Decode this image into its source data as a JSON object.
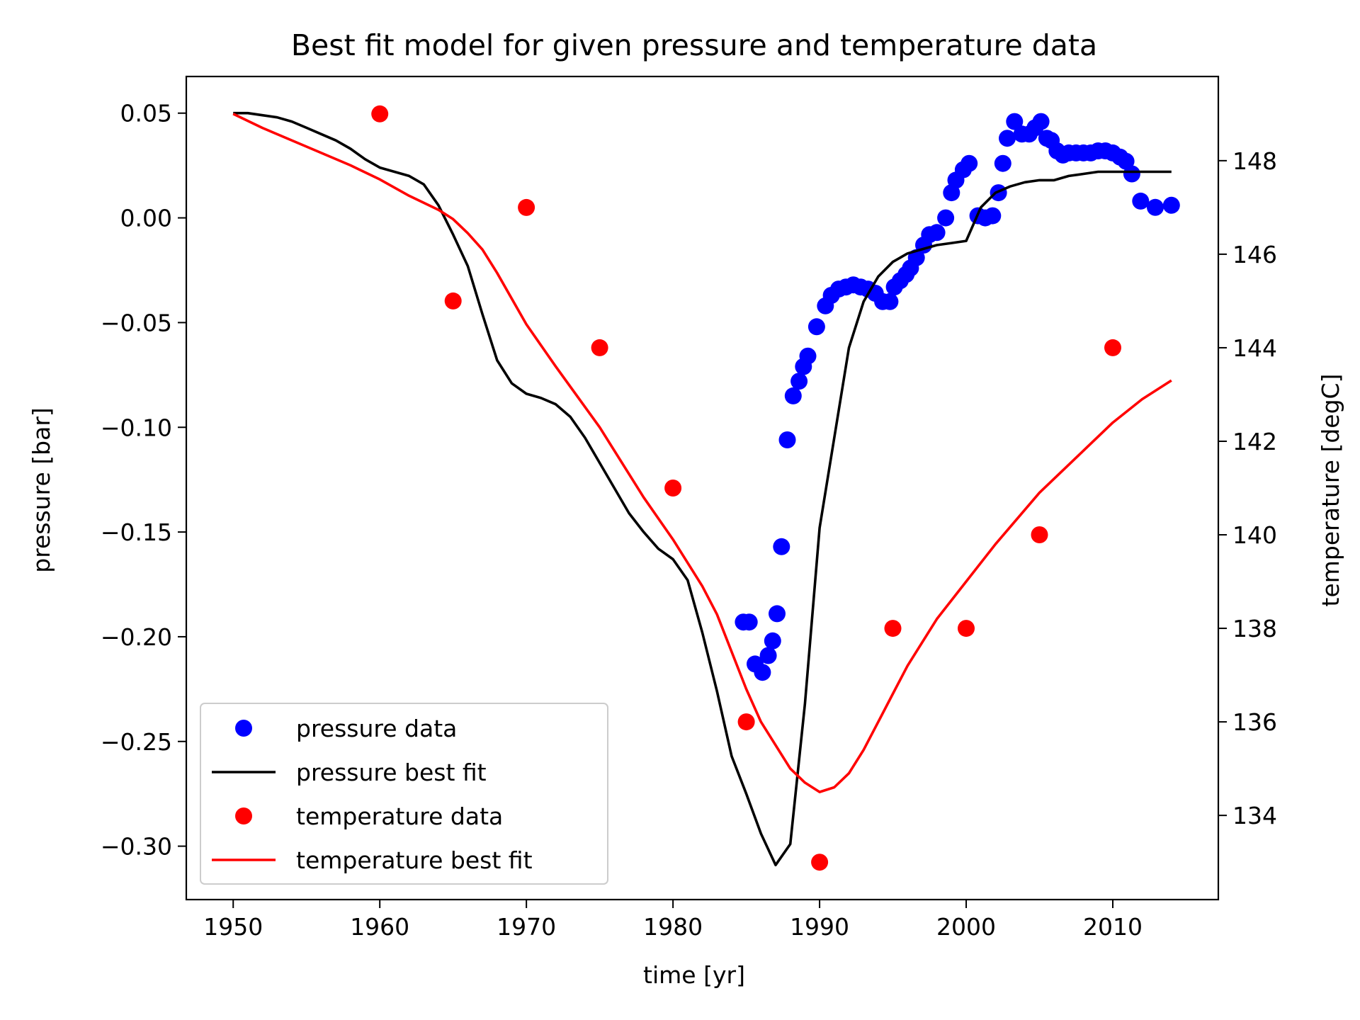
{
  "chart_data": {
    "type": "line",
    "title": "Best fit model for given pressure and temperature data",
    "xlabel": "time [yr]",
    "ylabel_left": "pressure [bar]",
    "ylabel_right": "temperature [degC]",
    "xlim": [
      1946.8,
      2017.2
    ],
    "ylim_left": [
      -0.3255,
      0.0675
    ],
    "ylim_right": [
      132.2,
      149.8
    ],
    "x_ticks": [
      1950,
      1960,
      1970,
      1980,
      1990,
      2000,
      2010
    ],
    "x_tick_labels": [
      "1950",
      "1960",
      "1970",
      "1980",
      "1990",
      "2000",
      "2010"
    ],
    "y_left_ticks": [
      0.05,
      0.0,
      -0.05,
      -0.1,
      -0.15,
      -0.2,
      -0.25,
      -0.3
    ],
    "y_left_tick_labels": [
      "0.05",
      "0.00",
      "−0.05",
      "−0.10",
      "−0.15",
      "−0.20",
      "−0.25",
      "−0.30"
    ],
    "y_right_ticks": [
      134,
      136,
      138,
      140,
      142,
      144,
      146,
      148
    ],
    "y_right_tick_labels": [
      "134",
      "136",
      "138",
      "140",
      "142",
      "144",
      "146",
      "148"
    ],
    "grid": false,
    "legend_position": "lower-left",
    "series": [
      {
        "name": "pressure data",
        "kind": "scatter",
        "axis": "left",
        "color": "#0000ff",
        "points": [
          [
            1984.8,
            -0.193
          ],
          [
            1985.2,
            -0.193
          ],
          [
            1985.6,
            -0.213
          ],
          [
            1986.1,
            -0.217
          ],
          [
            1986.5,
            -0.209
          ],
          [
            1986.8,
            -0.202
          ],
          [
            1987.1,
            -0.189
          ],
          [
            1987.4,
            -0.157
          ],
          [
            1987.8,
            -0.106
          ],
          [
            1988.2,
            -0.085
          ],
          [
            1988.6,
            -0.078
          ],
          [
            1988.9,
            -0.071
          ],
          [
            1989.2,
            -0.066
          ],
          [
            1989.8,
            -0.052
          ],
          [
            1990.4,
            -0.042
          ],
          [
            1990.8,
            -0.037
          ],
          [
            1991.3,
            -0.034
          ],
          [
            1991.8,
            -0.033
          ],
          [
            1992.3,
            -0.032
          ],
          [
            1992.8,
            -0.033
          ],
          [
            1993.3,
            -0.034
          ],
          [
            1993.8,
            -0.036
          ],
          [
            1994.3,
            -0.04
          ],
          [
            1994.8,
            -0.04
          ],
          [
            1995.1,
            -0.033
          ],
          [
            1995.5,
            -0.03
          ],
          [
            1995.9,
            -0.027
          ],
          [
            1996.2,
            -0.024
          ],
          [
            1996.6,
            -0.019
          ],
          [
            1997.1,
            -0.013
          ],
          [
            1997.5,
            -0.008
          ],
          [
            1998.0,
            -0.007
          ],
          [
            1998.6,
            0.0
          ],
          [
            1999.0,
            0.012
          ],
          [
            1999.3,
            0.018
          ],
          [
            1999.8,
            0.023
          ],
          [
            2000.2,
            0.026
          ],
          [
            2000.8,
            0.001
          ],
          [
            2001.3,
            0.0
          ],
          [
            2001.8,
            0.001
          ],
          [
            2002.2,
            0.012
          ],
          [
            2002.5,
            0.026
          ],
          [
            2002.8,
            0.038
          ],
          [
            2003.3,
            0.046
          ],
          [
            2003.8,
            0.04
          ],
          [
            2004.3,
            0.04
          ],
          [
            2004.7,
            0.043
          ],
          [
            2005.1,
            0.046
          ],
          [
            2005.5,
            0.038
          ],
          [
            2005.8,
            0.037
          ],
          [
            2006.2,
            0.032
          ],
          [
            2006.6,
            0.03
          ],
          [
            2007.0,
            0.031
          ],
          [
            2007.5,
            0.031
          ],
          [
            2008.0,
            0.031
          ],
          [
            2008.5,
            0.031
          ],
          [
            2009.0,
            0.032
          ],
          [
            2009.5,
            0.032
          ],
          [
            2010.0,
            0.031
          ],
          [
            2010.5,
            0.029
          ],
          [
            2010.9,
            0.027
          ],
          [
            2011.3,
            0.021
          ],
          [
            2011.9,
            0.008
          ],
          [
            2012.9,
            0.005
          ],
          [
            2014.0,
            0.006
          ]
        ]
      },
      {
        "name": "pressure best fit",
        "kind": "line",
        "axis": "left",
        "color": "#000000",
        "points": [
          [
            1950,
            0.05
          ],
          [
            1951,
            0.05
          ],
          [
            1952,
            0.049
          ],
          [
            1953,
            0.048
          ],
          [
            1954,
            0.046
          ],
          [
            1955,
            0.043
          ],
          [
            1956,
            0.04
          ],
          [
            1957,
            0.037
          ],
          [
            1958,
            0.033
          ],
          [
            1959,
            0.028
          ],
          [
            1960,
            0.024
          ],
          [
            1961,
            0.022
          ],
          [
            1962,
            0.02
          ],
          [
            1963,
            0.016
          ],
          [
            1964,
            0.006
          ],
          [
            1965,
            -0.008
          ],
          [
            1966,
            -0.023
          ],
          [
            1967,
            -0.046
          ],
          [
            1968,
            -0.068
          ],
          [
            1969,
            -0.079
          ],
          [
            1970,
            -0.084
          ],
          [
            1971,
            -0.086
          ],
          [
            1972,
            -0.089
          ],
          [
            1973,
            -0.095
          ],
          [
            1974,
            -0.105
          ],
          [
            1975,
            -0.117
          ],
          [
            1976,
            -0.129
          ],
          [
            1977,
            -0.141
          ],
          [
            1978,
            -0.15
          ],
          [
            1979,
            -0.158
          ],
          [
            1980,
            -0.163
          ],
          [
            1981,
            -0.173
          ],
          [
            1982,
            -0.198
          ],
          [
            1983,
            -0.226
          ],
          [
            1984,
            -0.257
          ],
          [
            1985,
            -0.275
          ],
          [
            1986,
            -0.294
          ],
          [
            1987,
            -0.309
          ],
          [
            1988,
            -0.299
          ],
          [
            1989,
            -0.232
          ],
          [
            1990,
            -0.148
          ],
          [
            1991,
            -0.105
          ],
          [
            1992,
            -0.062
          ],
          [
            1993,
            -0.04
          ],
          [
            1994,
            -0.028
          ],
          [
            1995,
            -0.021
          ],
          [
            1996,
            -0.017
          ],
          [
            1997,
            -0.015
          ],
          [
            1998,
            -0.013
          ],
          [
            1999,
            -0.012
          ],
          [
            2000,
            -0.011
          ],
          [
            2001,
            0.005
          ],
          [
            2002,
            0.012
          ],
          [
            2003,
            0.015
          ],
          [
            2004,
            0.017
          ],
          [
            2005,
            0.018
          ],
          [
            2006,
            0.018
          ],
          [
            2007,
            0.02
          ],
          [
            2008,
            0.021
          ],
          [
            2009,
            0.022
          ],
          [
            2010,
            0.022
          ],
          [
            2011,
            0.022
          ],
          [
            2012,
            0.022
          ],
          [
            2013,
            0.022
          ],
          [
            2014,
            0.022
          ]
        ]
      },
      {
        "name": "temperature data",
        "kind": "scatter",
        "axis": "right",
        "color": "#ff0000",
        "points": [
          [
            1960,
            149
          ],
          [
            1965,
            145
          ],
          [
            1970,
            147
          ],
          [
            1975,
            144
          ],
          [
            1980,
            141
          ],
          [
            1985,
            136
          ],
          [
            1990,
            133
          ],
          [
            1995,
            138
          ],
          [
            2000,
            138
          ],
          [
            2005,
            140
          ],
          [
            2010,
            144
          ]
        ]
      },
      {
        "name": "temperature best fit",
        "kind": "line",
        "axis": "right",
        "color": "#ff0000",
        "points": [
          [
            1950,
            149.0
          ],
          [
            1952,
            148.7
          ],
          [
            1955,
            148.3
          ],
          [
            1958,
            147.9
          ],
          [
            1960,
            147.6
          ],
          [
            1962,
            147.25
          ],
          [
            1964,
            146.95
          ],
          [
            1965,
            146.75
          ],
          [
            1966,
            146.45
          ],
          [
            1967,
            146.1
          ],
          [
            1968,
            145.6
          ],
          [
            1970,
            144.5
          ],
          [
            1972,
            143.6
          ],
          [
            1975,
            142.3
          ],
          [
            1978,
            140.8
          ],
          [
            1980,
            139.9
          ],
          [
            1982,
            138.9
          ],
          [
            1983,
            138.3
          ],
          [
            1984,
            137.5
          ],
          [
            1985,
            136.7
          ],
          [
            1986,
            136.0
          ],
          [
            1987,
            135.5
          ],
          [
            1988,
            135.0
          ],
          [
            1989,
            134.7
          ],
          [
            1990,
            134.5
          ],
          [
            1991,
            134.6
          ],
          [
            1992,
            134.9
          ],
          [
            1993,
            135.4
          ],
          [
            1994,
            136.0
          ],
          [
            1995,
            136.6
          ],
          [
            1996,
            137.2
          ],
          [
            1998,
            138.2
          ],
          [
            2000,
            139.0
          ],
          [
            2002,
            139.8
          ],
          [
            2005,
            140.9
          ],
          [
            2008,
            141.8
          ],
          [
            2010,
            142.4
          ],
          [
            2012,
            142.9
          ],
          [
            2014,
            143.3
          ]
        ]
      }
    ]
  }
}
